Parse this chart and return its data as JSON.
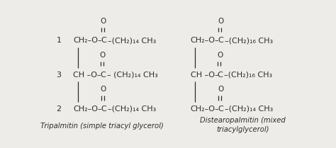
{
  "bg_color": "#eeece8",
  "left_label_line1": "Tripalmitin (simple triacyl glycerol)",
  "right_label_line1": "Distearopalmitin (mixed",
  "right_label_line2": "triacylglycerol)",
  "left_rows": [
    {
      "num": "1",
      "prefix": "CH₂–O–",
      "tail": "–(CH₂)₁₄ CH₃"
    },
    {
      "num": "3",
      "prefix": "CH –O–",
      "tail": "– (CH₂)₁₄ CH₃"
    },
    {
      "num": "2",
      "prefix": "CH₂–O–",
      "tail": "–(CH₂)₁₄ CH₃"
    }
  ],
  "right_rows": [
    {
      "prefix": "CH₂–O–",
      "tail": "–(CH₂)₁₆ CH₃"
    },
    {
      "prefix": "CH –O–",
      "tail": "–(CH₂)₁₆ CH₃"
    },
    {
      "prefix": "CH₂–O–",
      "tail": "–(CH₂)₁₄ CH₃"
    }
  ],
  "text_color": "#2d2d2d",
  "fs_formula": 8.0,
  "fs_label": 7.2,
  "fs_num": 8.0
}
